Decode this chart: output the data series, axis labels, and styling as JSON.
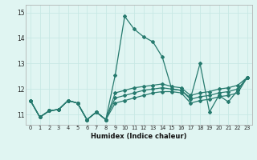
{
  "xlabel": "Humidex (Indice chaleur)",
  "xlim": [
    -0.5,
    23.5
  ],
  "ylim": [
    10.6,
    15.3
  ],
  "yticks": [
    11,
    12,
    13,
    14,
    15
  ],
  "xticks": [
    0,
    1,
    2,
    3,
    4,
    5,
    6,
    7,
    8,
    9,
    10,
    11,
    12,
    13,
    14,
    15,
    16,
    17,
    18,
    19,
    20,
    21,
    22,
    23
  ],
  "bg_color": "#e0f5f2",
  "line_color": "#267a6e",
  "grid_color": "#c8e8e4",
  "series": [
    [
      11.55,
      10.9,
      11.15,
      11.2,
      11.55,
      11.45,
      10.8,
      11.1,
      10.8,
      12.55,
      14.85,
      14.35,
      14.05,
      13.85,
      13.25,
      12.0,
      11.95,
      11.65,
      13.0,
      11.1,
      11.75,
      11.5,
      11.95,
      12.45
    ],
    [
      11.55,
      10.9,
      11.15,
      11.2,
      11.55,
      11.45,
      10.8,
      11.1,
      10.8,
      11.85,
      11.95,
      12.05,
      12.1,
      12.15,
      12.2,
      12.1,
      12.05,
      11.75,
      11.85,
      11.9,
      12.0,
      12.05,
      12.15,
      12.45
    ],
    [
      11.55,
      10.9,
      11.15,
      11.2,
      11.55,
      11.45,
      10.8,
      11.1,
      10.8,
      11.65,
      11.75,
      11.85,
      11.95,
      12.0,
      12.05,
      12.0,
      11.95,
      11.6,
      11.7,
      11.75,
      11.85,
      11.9,
      12.0,
      12.45
    ],
    [
      11.55,
      10.9,
      11.15,
      11.2,
      11.55,
      11.45,
      10.8,
      11.1,
      10.8,
      11.45,
      11.55,
      11.65,
      11.75,
      11.85,
      11.9,
      11.9,
      11.85,
      11.45,
      11.55,
      11.6,
      11.7,
      11.75,
      11.85,
      12.45
    ]
  ]
}
